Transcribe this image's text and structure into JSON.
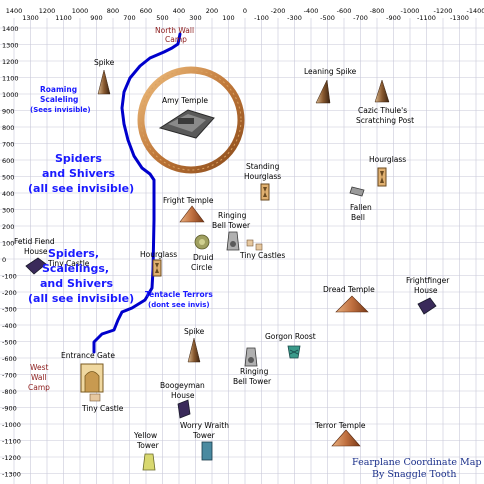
{
  "axes": {
    "x_ticks": [
      "1400",
      "1300",
      "1200",
      "1100",
      "1000",
      "900",
      "800",
      "700",
      "600",
      "500",
      "400",
      "300",
      "200",
      "100",
      "0",
      "-100",
      "-200",
      "-300",
      "-400",
      "-500",
      "-600",
      "-700",
      "-800",
      "-900",
      "-1000",
      "-1100",
      "-1200",
      "-1300",
      "-1400"
    ],
    "y_ticks": [
      "1400",
      "1300",
      "1200",
      "1100",
      "1000",
      "900",
      "800",
      "700",
      "600",
      "500",
      "400",
      "300",
      "200",
      "100",
      "0",
      "-100",
      "-200",
      "-300",
      "-400",
      "-500",
      "-600",
      "-700",
      "-800",
      "-900",
      "-1000",
      "-1100",
      "-1200",
      "-1300",
      "-1400"
    ],
    "grid": true
  },
  "labels": {
    "north_wall_camp": [
      "North Wall",
      "Camp"
    ],
    "west_wall_camp": [
      "West",
      "Wall",
      "Camp"
    ],
    "spike_nw": "Spike",
    "amy_temple": "Amy Temple",
    "leaning_spike": "Leaning Spike",
    "cazic_thule": [
      "Cazic Thule's",
      "Scratching Post"
    ],
    "standing_hourglass": [
      "Standing",
      "Hourglass"
    ],
    "hourglass_east": "Hourglass",
    "fallen_bell": [
      "Fallen",
      "Bell"
    ],
    "fright_temple": "Fright Temple",
    "ringing_bell_tower_north": [
      "Ringing",
      "Bell Tower"
    ],
    "fetid_fiend_house": [
      "Fetid Fiend",
      "House"
    ],
    "tiny_castle_west": "Tiny Castle",
    "hourglass_west": "Hourglass",
    "druid_circle": [
      "Druid",
      "Circle"
    ],
    "tiny_castles": "Tiny Castles",
    "dread_temple": "Dread Temple",
    "frightfinger_house": [
      "Frightfinger",
      "House"
    ],
    "gorgon_roost": "Gorgon Roost",
    "spike_south": "Spike",
    "ringing_bell_tower_south": [
      "Ringing",
      "Bell Tower"
    ],
    "entrance_gate": "Entrance Gate",
    "tiny_castle_south": "Tiny Castle",
    "boogeyman_house": [
      "Boogeyman",
      "House"
    ],
    "worry_wraith_tower": [
      "Worry Wraith",
      "Tower"
    ],
    "yellow_tower": [
      "Yellow",
      "Tower"
    ],
    "terror_temple": "Terror Temple"
  },
  "zones": {
    "roaming_scaleling": [
      "Roaming",
      "Scaleling",
      "(Sees invisible)"
    ],
    "spiders_shivers": [
      "Spiders",
      "and Shivers",
      "(all see invisible)"
    ],
    "spiders_scalelings_shivers": [
      "Spiders,",
      "Scalelings,",
      "and Shivers",
      "(all see invisible)"
    ],
    "tentacle_terrors": [
      "Tentacle Terrors",
      "(dont see invis)"
    ]
  },
  "credit": [
    "Fearplane Coordinate Map",
    "By Snaggle Tooth"
  ],
  "colors": {
    "path": "#0000cc",
    "zone_text": "#1a1aff",
    "camp_text": "#8b1a1a",
    "grid": "#c8c8d8",
    "credit_text": "#1a2f8a",
    "ring": "#c8823a"
  },
  "icons": [
    "spike-icon",
    "temple-icon",
    "hourglass-icon",
    "bell-icon",
    "house-icon",
    "castle-icon",
    "tower-icon",
    "gate-icon",
    "druid-circle-icon",
    "pyramid-icon",
    "roost-icon"
  ]
}
